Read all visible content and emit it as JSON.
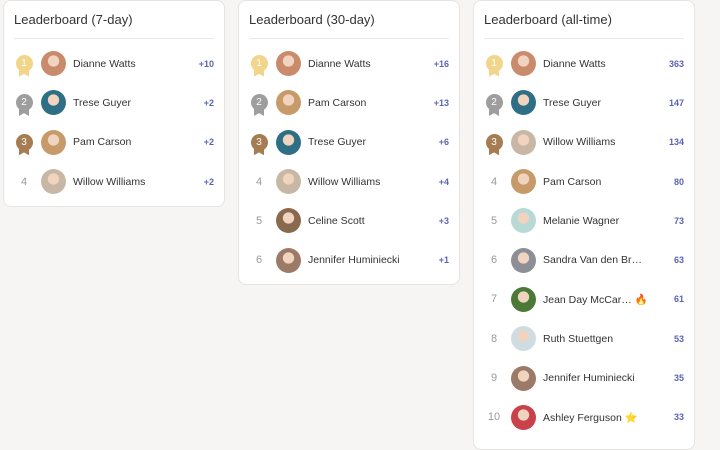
{
  "colors": {
    "gold": "#f0d58a",
    "silver": "#9e9e9e",
    "bronze": "#a67c52",
    "score": "#5b63b7"
  },
  "boards": [
    {
      "title": "Leaderboard (7-day)",
      "entries": [
        {
          "rank": "1",
          "name": "Dianne Watts",
          "score": "+10",
          "avatar": "#c98b6b"
        },
        {
          "rank": "2",
          "name": "Trese Guyer",
          "score": "+2",
          "avatar": "#2f6f86"
        },
        {
          "rank": "3",
          "name": "Pam Carson",
          "score": "+2",
          "avatar": "#c79a6a"
        },
        {
          "rank": "4",
          "name": "Willow Williams",
          "score": "+2",
          "avatar": "#c9b7a5"
        }
      ]
    },
    {
      "title": "Leaderboard (30-day)",
      "entries": [
        {
          "rank": "1",
          "name": "Dianne Watts",
          "score": "+16",
          "avatar": "#c98b6b"
        },
        {
          "rank": "2",
          "name": "Pam Carson",
          "score": "+13",
          "avatar": "#c79a6a"
        },
        {
          "rank": "3",
          "name": "Trese Guyer",
          "score": "+6",
          "avatar": "#2f6f86"
        },
        {
          "rank": "4",
          "name": "Willow Williams",
          "score": "+4",
          "avatar": "#c9b7a5"
        },
        {
          "rank": "5",
          "name": "Celine Scott",
          "score": "+3",
          "avatar": "#8a6a4f"
        },
        {
          "rank": "6",
          "name": "Jennifer Huminiecki",
          "score": "+1",
          "avatar": "#9b7b68"
        }
      ]
    },
    {
      "title": "Leaderboard (all-time)",
      "entries": [
        {
          "rank": "1",
          "name": "Dianne Watts",
          "score": "363",
          "avatar": "#c98b6b"
        },
        {
          "rank": "2",
          "name": "Trese Guyer",
          "score": "147",
          "avatar": "#2f6f86"
        },
        {
          "rank": "3",
          "name": "Willow Williams",
          "score": "134",
          "avatar": "#c9b7a5"
        },
        {
          "rank": "4",
          "name": "Pam Carson",
          "score": "80",
          "avatar": "#c79a6a"
        },
        {
          "rank": "5",
          "name": "Melanie Wagner",
          "score": "73",
          "avatar": "#b9d9d6"
        },
        {
          "rank": "6",
          "name": "Sandra Van den Br…",
          "score": "63",
          "avatar": "#8c8f96"
        },
        {
          "rank": "7",
          "name": "Jean Day McCar… 🔥",
          "score": "61",
          "avatar": "#4c7a36"
        },
        {
          "rank": "8",
          "name": "Ruth Stuettgen",
          "score": "53",
          "avatar": "#cfdde3"
        },
        {
          "rank": "9",
          "name": "Jennifer Huminiecki",
          "score": "35",
          "avatar": "#9b7b68"
        },
        {
          "rank": "10",
          "name": "Ashley Ferguson ⭐",
          "score": "33",
          "avatar": "#c9424a"
        }
      ]
    }
  ]
}
